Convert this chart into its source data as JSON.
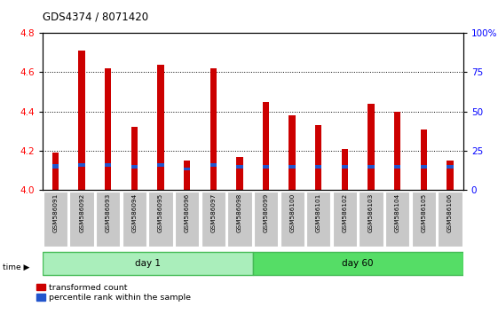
{
  "title": "GDS4374 / 8071420",
  "samples": [
    "GSM586091",
    "GSM586092",
    "GSM586093",
    "GSM586094",
    "GSM586095",
    "GSM586096",
    "GSM586097",
    "GSM586098",
    "GSM586099",
    "GSM586100",
    "GSM586101",
    "GSM586102",
    "GSM586103",
    "GSM586104",
    "GSM586105",
    "GSM586106"
  ],
  "red_values": [
    4.19,
    4.71,
    4.62,
    4.32,
    4.64,
    4.15,
    4.62,
    4.17,
    4.45,
    4.38,
    4.33,
    4.21,
    4.44,
    4.4,
    4.31,
    4.15
  ],
  "blue_bottoms": [
    4.11,
    4.12,
    4.12,
    4.11,
    4.12,
    4.1,
    4.12,
    4.11,
    4.11,
    4.11,
    4.11,
    4.11,
    4.11,
    4.11,
    4.11,
    4.11
  ],
  "blue_heights": [
    0.022,
    0.018,
    0.018,
    0.018,
    0.018,
    0.016,
    0.018,
    0.018,
    0.016,
    0.016,
    0.016,
    0.016,
    0.016,
    0.016,
    0.016,
    0.016
  ],
  "ylim": [
    4.0,
    4.8
  ],
  "yticks": [
    4.0,
    4.2,
    4.4,
    4.6,
    4.8
  ],
  "right_yticks": [
    0,
    25,
    50,
    75,
    100
  ],
  "day1_count": 8,
  "day60_count": 8,
  "bar_color": "#cc0000",
  "blue_color": "#2255cc",
  "day1_color": "#aaeebb",
  "day60_color": "#55dd66",
  "bg_color": "#ffffff",
  "plot_bg": "#ffffff",
  "tick_label_bg": "#c8c8c8",
  "legend_red_label": "transformed count",
  "legend_blue_label": "percentile rank within the sample",
  "day1_label": "day 1",
  "day60_label": "day 60",
  "time_label": "time"
}
